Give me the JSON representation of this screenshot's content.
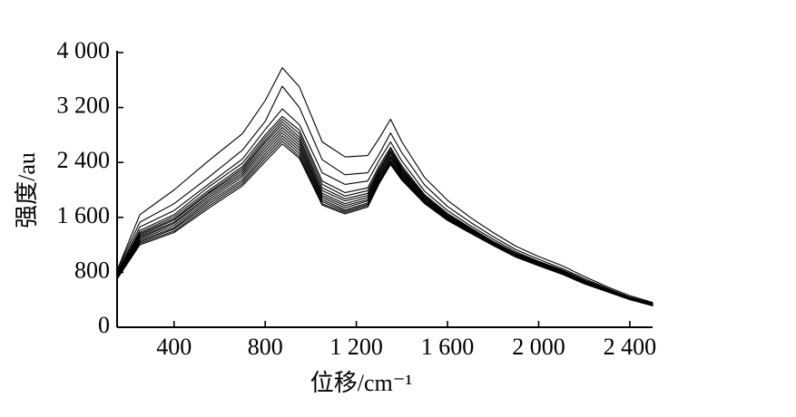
{
  "chart_data": {
    "type": "line",
    "title": "",
    "xlabel": "位移/cm⁻¹",
    "ylabel": "强度/au",
    "xlim": [
      150,
      2500
    ],
    "ylim": [
      0,
      4000
    ],
    "x_ticks": [
      400,
      800,
      1200,
      1600,
      2000,
      2400
    ],
    "x_tick_labels": [
      "400",
      "800",
      "1 200",
      "1 600",
      "2 000",
      "2 400"
    ],
    "y_ticks": [
      0,
      800,
      1600,
      2400,
      3200,
      4000
    ],
    "y_tick_labels": [
      "0",
      "800",
      "1 600",
      "2 400",
      "3 200",
      "4 000"
    ],
    "grid": false,
    "line_color": "#000000",
    "x": [
      150,
      250,
      400,
      550,
      700,
      800,
      875,
      950,
      1050,
      1150,
      1250,
      1300,
      1350,
      1400,
      1500,
      1600,
      1700,
      1800,
      1900,
      2000,
      2100,
      2200,
      2300,
      2400,
      2500
    ],
    "series": [
      {
        "values": [
          830,
          1640,
          2000,
          2420,
          2820,
          3300,
          3780,
          3500,
          2700,
          2480,
          2500,
          2750,
          3030,
          2700,
          2180,
          1850,
          1600,
          1380,
          1180,
          1030,
          900,
          740,
          590,
          460,
          360
        ]
      },
      {
        "values": [
          830,
          1530,
          1800,
          2180,
          2580,
          3000,
          3510,
          3200,
          2440,
          2220,
          2250,
          2520,
          2830,
          2540,
          2070,
          1760,
          1530,
          1320,
          1130,
          990,
          860,
          710,
          570,
          440,
          350
        ]
      },
      {
        "values": [
          800,
          1460,
          1700,
          2080,
          2450,
          2880,
          3180,
          2950,
          2250,
          2080,
          2130,
          2430,
          2700,
          2420,
          1980,
          1700,
          1480,
          1280,
          1100,
          960,
          840,
          690,
          560,
          430,
          340
        ]
      },
      {
        "values": [
          780,
          1410,
          1640,
          2040,
          2390,
          2800,
          3070,
          2870,
          2130,
          1960,
          2030,
          2350,
          2620,
          2350,
          1930,
          1660,
          1450,
          1250,
          1080,
          950,
          830,
          680,
          550,
          430,
          335
        ]
      },
      {
        "values": [
          770,
          1380,
          1610,
          1990,
          2340,
          2760,
          3030,
          2820,
          2080,
          1910,
          1990,
          2310,
          2590,
          2320,
          1910,
          1640,
          1440,
          1240,
          1070,
          940,
          820,
          675,
          545,
          425,
          330
        ]
      },
      {
        "values": [
          760,
          1360,
          1580,
          1960,
          2310,
          2720,
          2990,
          2770,
          2030,
          1870,
          1950,
          2280,
          2560,
          2300,
          1900,
          1630,
          1430,
          1230,
          1060,
          935,
          815,
          670,
          540,
          420,
          328
        ]
      },
      {
        "values": [
          760,
          1340,
          1560,
          1940,
          2280,
          2690,
          2950,
          2730,
          1990,
          1840,
          1920,
          2260,
          2540,
          2280,
          1890,
          1620,
          1420,
          1225,
          1055,
          930,
          810,
          665,
          538,
          418,
          326
        ]
      },
      {
        "values": [
          750,
          1320,
          1530,
          1910,
          2250,
          2650,
          2910,
          2690,
          1950,
          1800,
          1890,
          2230,
          2510,
          2260,
          1870,
          1610,
          1410,
          1220,
          1050,
          925,
          805,
          660,
          535,
          415,
          324
        ]
      },
      {
        "values": [
          740,
          1300,
          1510,
          1880,
          2220,
          2610,
          2870,
          2650,
          1920,
          1770,
          1860,
          2200,
          2480,
          2240,
          1860,
          1600,
          1400,
          1215,
          1045,
          920,
          800,
          655,
          532,
          413,
          322
        ]
      },
      {
        "values": [
          730,
          1280,
          1480,
          1850,
          2190,
          2570,
          2830,
          2610,
          1890,
          1740,
          1840,
          2180,
          2460,
          2220,
          1840,
          1590,
          1390,
          1210,
          1040,
          915,
          795,
          650,
          528,
          410,
          320
        ]
      },
      {
        "values": [
          720,
          1260,
          1450,
          1820,
          2150,
          2530,
          2790,
          2570,
          1860,
          1710,
          1810,
          2150,
          2430,
          2200,
          1830,
          1580,
          1385,
          1205,
          1035,
          910,
          790,
          645,
          525,
          408,
          318
        ]
      },
      {
        "values": [
          720,
          1240,
          1430,
          1790,
          2120,
          2490,
          2750,
          2530,
          1830,
          1690,
          1790,
          2130,
          2410,
          2180,
          1820,
          1570,
          1380,
          1200,
          1030,
          905,
          785,
          640,
          522,
          405,
          316
        ]
      },
      {
        "values": [
          710,
          1220,
          1400,
          1760,
          2090,
          2450,
          2710,
          2490,
          1800,
          1670,
          1770,
          2110,
          2390,
          2160,
          1810,
          1560,
          1375,
          1195,
          1025,
          900,
          780,
          635,
          520,
          403,
          314
        ]
      },
      {
        "values": [
          700,
          1200,
          1380,
          1730,
          2060,
          2410,
          2670,
          2460,
          1780,
          1650,
          1750,
          2090,
          2370,
          2140,
          1800,
          1555,
          1370,
          1190,
          1020,
          895,
          775,
          632,
          518,
          402,
          313
        ]
      }
    ]
  }
}
